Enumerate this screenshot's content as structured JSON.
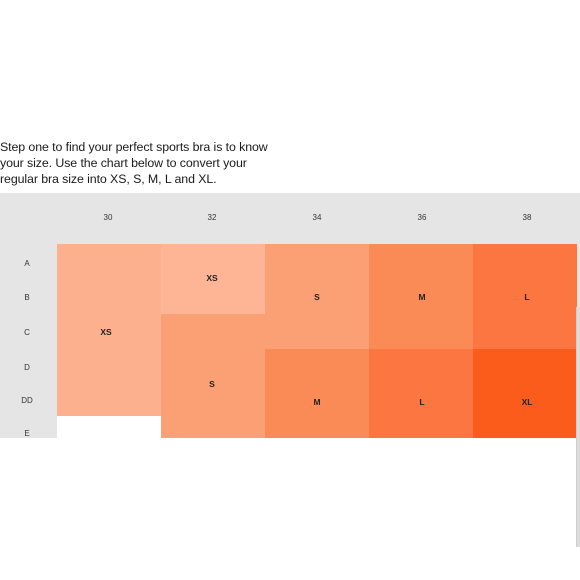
{
  "intro_lines": [
    "Step one to find your perfect sports bra is to know",
    "your size. Use the chart below to convert your",
    "regular bra size into XS, S, M, L and XL."
  ],
  "band_sizes": [
    "30",
    "32",
    "34",
    "36",
    "38"
  ],
  "cup_sizes": [
    "A",
    "B",
    "C",
    "D",
    "DD",
    "E"
  ],
  "size_labels": {
    "xs_a": "XS",
    "xs_c": "XS",
    "s_b": "S",
    "s_d": "S",
    "m_b": "M",
    "m_dd": "M",
    "l_b": "L",
    "l_dd": "L",
    "xl_dd": "XL"
  },
  "colors": {
    "header_bg": "#e5e5e5",
    "xs": "#fcb08e",
    "xs_light": "#fdb595",
    "s": "#fb9f75",
    "m": "#fb8b56",
    "l": "#fb7640",
    "xl": "#fb5c1c"
  }
}
